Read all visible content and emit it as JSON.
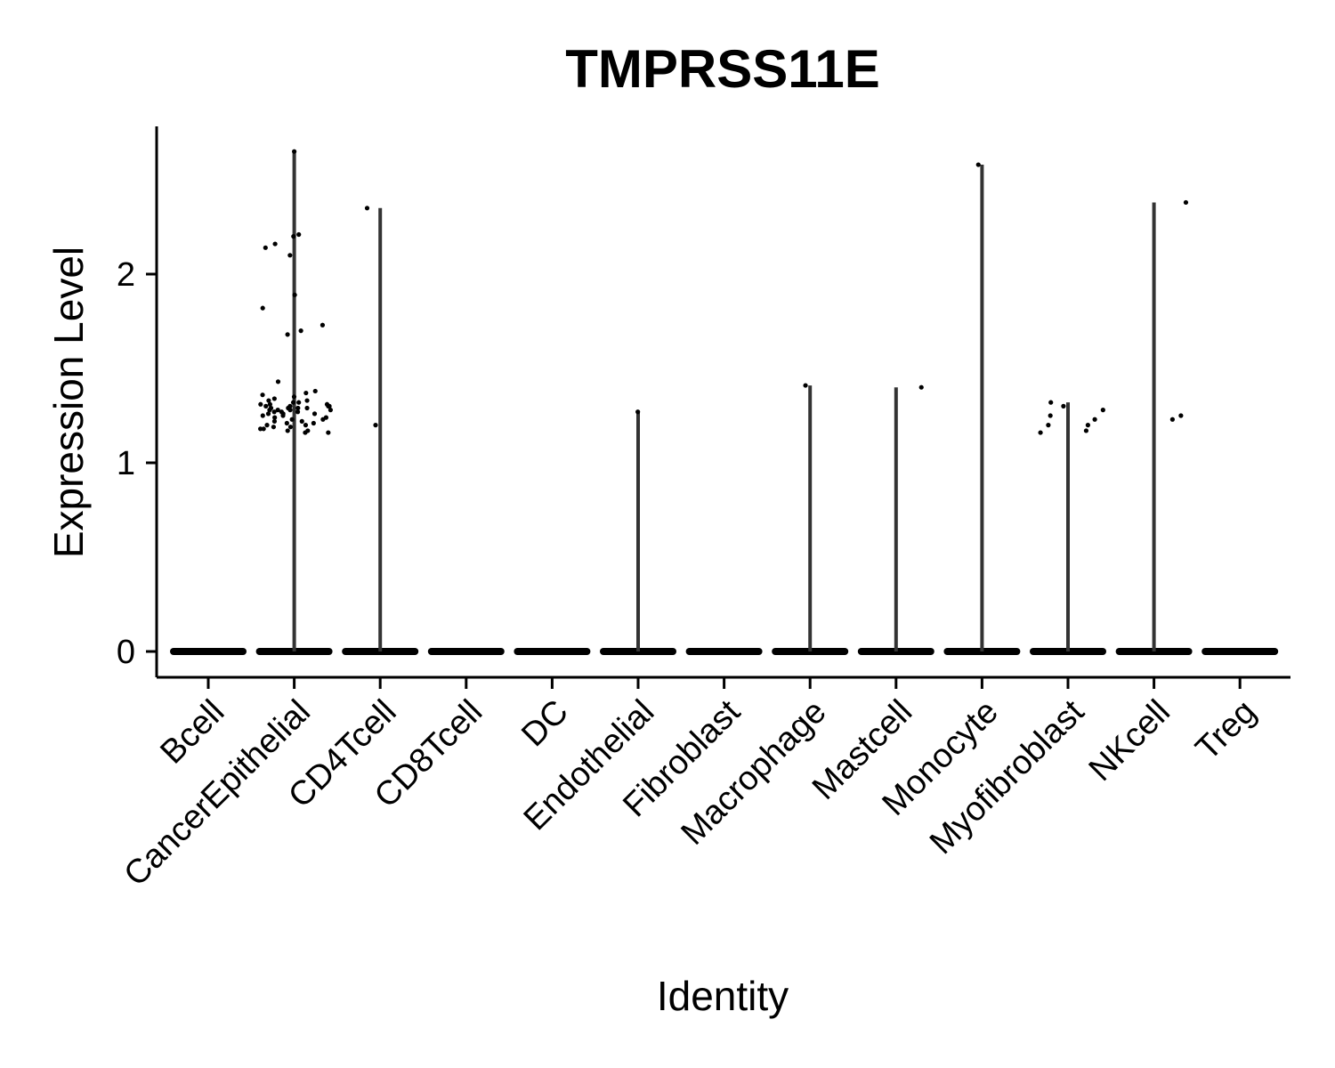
{
  "chart_data": {
    "type": "violin",
    "title": "TMPRSS11E",
    "xlabel": "Identity",
    "ylabel": "Expression Level",
    "ylim": [
      -0.13,
      2.8
    ],
    "yticks": [
      0,
      1,
      2
    ],
    "grid": false,
    "legend": "none",
    "colors": {
      "line": "#000000",
      "violin": "#333333"
    },
    "categories": [
      "Bcell",
      "CancerEpithelial",
      "CD4Tcell",
      "CD8Tcell",
      "DC",
      "Endothelial",
      "Fibroblast",
      "Macrophage",
      "Mastcell",
      "Monocyte",
      "Myofibroblast",
      "NKcell",
      "Treg"
    ],
    "violin_max": [
      0,
      2.65,
      2.35,
      0,
      0,
      1.27,
      0,
      1.41,
      1.4,
      2.58,
      1.32,
      2.38,
      0
    ],
    "points": [
      {
        "category": "CancerEpithelial",
        "values": [
          2.65,
          2.2,
          2.21,
          2.14,
          2.16,
          2.1,
          1.89,
          1.82,
          1.73,
          1.7,
          1.68,
          1.43,
          1.38,
          1.37,
          1.36,
          1.35,
          1.34,
          1.33,
          1.33,
          1.32,
          1.32,
          1.31,
          1.31,
          1.31,
          1.3,
          1.3,
          1.3,
          1.3,
          1.29,
          1.29,
          1.29,
          1.29,
          1.28,
          1.28,
          1.28,
          1.28,
          1.27,
          1.27,
          1.27,
          1.26,
          1.26,
          1.26,
          1.25,
          1.25,
          1.24,
          1.24,
          1.23,
          1.23,
          1.22,
          1.22,
          1.21,
          1.21,
          1.2,
          1.2,
          1.19,
          1.19,
          1.18,
          1.18,
          1.17,
          1.17,
          1.16,
          1.16
        ]
      },
      {
        "category": "CD4Tcell",
        "values": [
          2.35,
          1.2
        ]
      },
      {
        "category": "Endothelial",
        "values": [
          1.27
        ]
      },
      {
        "category": "Macrophage",
        "values": [
          1.41
        ]
      },
      {
        "category": "Mastcell",
        "values": [
          1.4
        ]
      },
      {
        "category": "Monocyte",
        "values": [
          2.58
        ]
      },
      {
        "category": "Myofibroblast",
        "values": [
          1.3,
          1.25,
          1.2,
          1.17,
          1.16,
          1.32,
          1.2,
          1.23,
          1.28
        ]
      },
      {
        "category": "NKcell",
        "values": [
          2.38,
          1.25,
          1.23
        ]
      }
    ]
  }
}
